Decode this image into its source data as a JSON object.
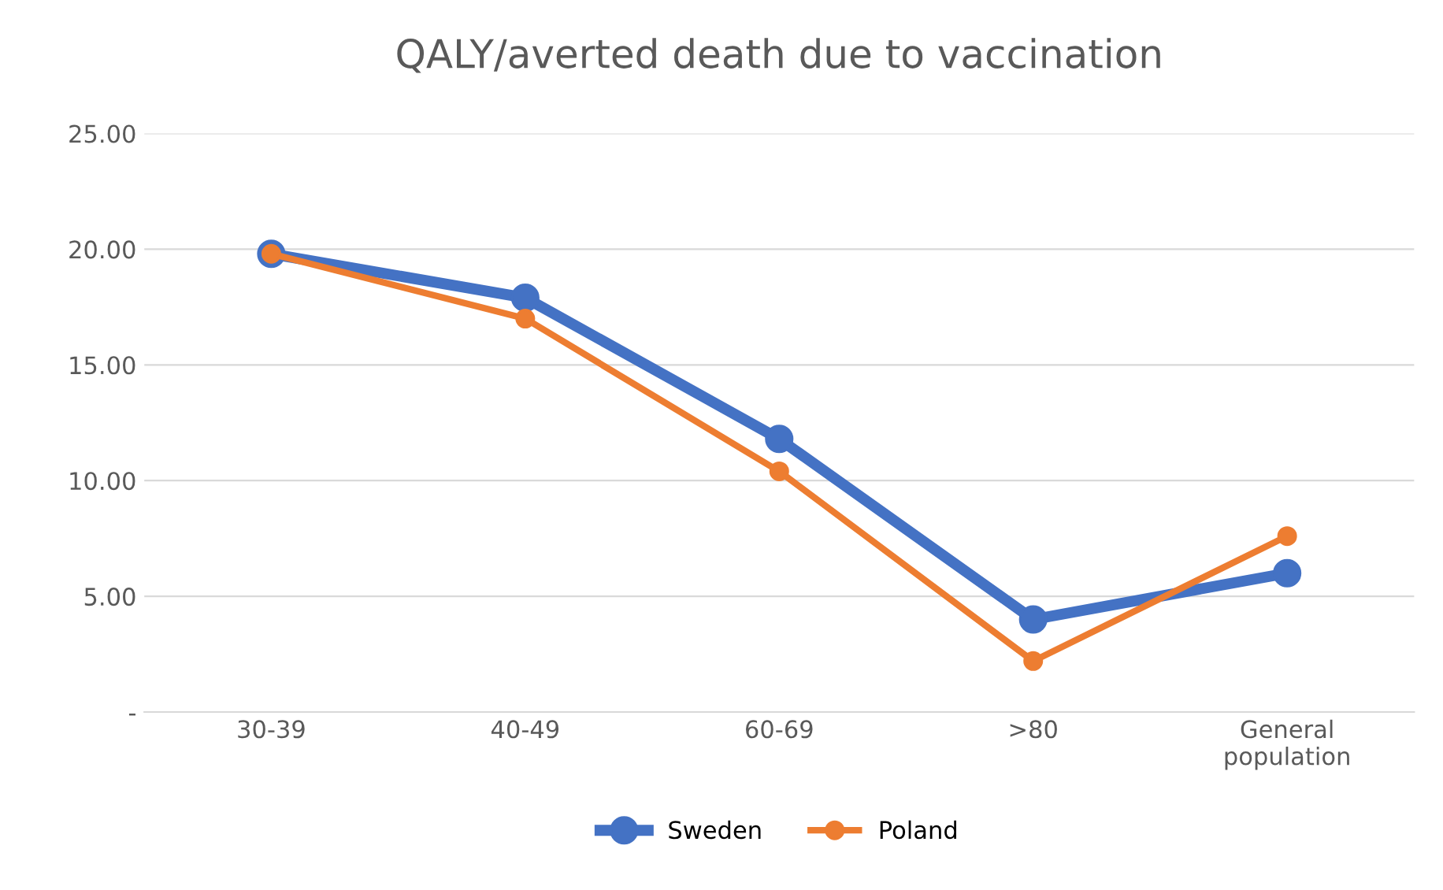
{
  "chart_data": {
    "type": "line",
    "title": "QALY/averted death due to vaccination",
    "categories": [
      "30-39",
      "40-49",
      "60-69",
      ">80",
      "General\npopulation"
    ],
    "series": [
      {
        "name": "Sweden",
        "color": "#4472c4",
        "values": [
          19.8,
          17.9,
          11.8,
          4.0,
          6.0
        ]
      },
      {
        "name": "Poland",
        "color": "#ed7d31",
        "values": [
          19.8,
          17.0,
          10.4,
          2.2,
          7.6
        ]
      }
    ],
    "ylim": [
      0,
      25
    ],
    "yticks": [
      {
        "value": 0,
        "label": "-"
      },
      {
        "value": 5,
        "label": "5.00"
      },
      {
        "value": 10,
        "label": "10.00"
      },
      {
        "value": 15,
        "label": "15.00"
      },
      {
        "value": 20,
        "label": "20.00"
      },
      {
        "value": 25,
        "label": "25.00"
      }
    ],
    "grid": "y",
    "legend": "bottom",
    "marker": "circle",
    "line_style": "solid"
  }
}
